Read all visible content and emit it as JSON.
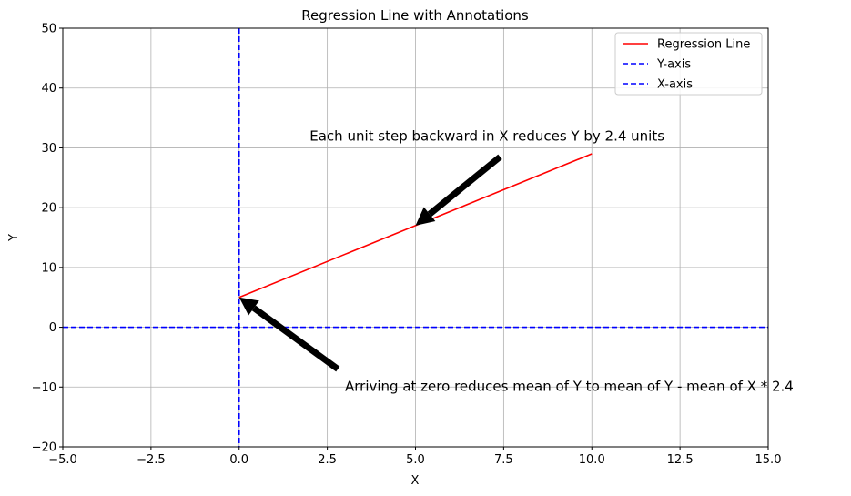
{
  "chart_data": {
    "type": "line",
    "title": "Regression Line with Annotations",
    "xlabel": "X",
    "ylabel": "Y",
    "xlim": [
      -5,
      15
    ],
    "ylim": [
      -20,
      50
    ],
    "xticks": [
      -5,
      -2.5,
      0,
      2.5,
      5,
      7.5,
      10,
      12.5,
      15
    ],
    "xtick_labels": [
      "−5.0",
      "−2.5",
      "0.0",
      "2.5",
      "5.0",
      "7.5",
      "10.0",
      "12.5",
      "15.0"
    ],
    "yticks": [
      -20,
      -10,
      0,
      10,
      20,
      30,
      40,
      50
    ],
    "ytick_labels": [
      "−20",
      "−10",
      "0",
      "10",
      "20",
      "30",
      "40",
      "50"
    ],
    "grid": true,
    "legend_position": "top-right",
    "series": [
      {
        "name": "Regression Line",
        "kind": "line",
        "x": [
          0,
          10
        ],
        "y": [
          5,
          29
        ],
        "color": "#ff0000",
        "style": "solid"
      },
      {
        "name": "Y-axis",
        "kind": "vline",
        "x": 0,
        "color": "#0000ff",
        "style": "dashed"
      },
      {
        "name": "X-axis",
        "kind": "hline",
        "y": 0,
        "color": "#0000ff",
        "style": "dashed"
      }
    ],
    "annotations": [
      {
        "text": "Each unit step backward in X reduces Y by 2.4 units",
        "xy": [
          5,
          17
        ],
        "xytext": [
          2,
          30
        ]
      },
      {
        "text": "Arriving at zero reduces mean of Y to mean of Y - mean of X * 2.4",
        "xy": [
          0,
          5
        ],
        "xytext": [
          3,
          -10
        ]
      }
    ]
  }
}
